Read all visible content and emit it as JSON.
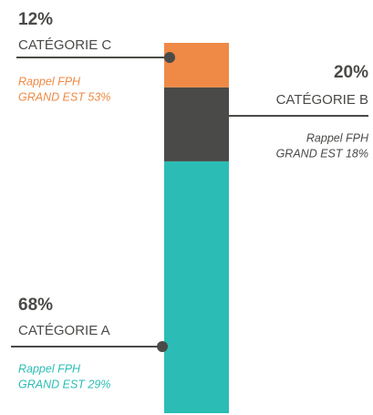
{
  "chart_data": {
    "type": "stacked-bar",
    "ylim": [
      0,
      100
    ],
    "series": [
      {
        "name": "CATÉGORIE A",
        "color": "#2bbdb5",
        "values": [
          68
        ],
        "value_labels": [
          "68%"
        ],
        "note": [
          "Rappel FPH",
          "GRAND EST 29%"
        ]
      },
      {
        "name": "CATÉGORIE B",
        "color": "#4a4a48",
        "values": [
          20
        ],
        "value_labels": [
          "20%"
        ],
        "note": [
          "Rappel FPH",
          "GRAND EST 18%"
        ]
      },
      {
        "name": "CATÉGORIE C",
        "color": "#ee8a45",
        "values": [
          12
        ],
        "value_labels": [
          "12%"
        ],
        "note": [
          "Rappel FPH",
          "GRAND EST 53%"
        ]
      }
    ]
  }
}
